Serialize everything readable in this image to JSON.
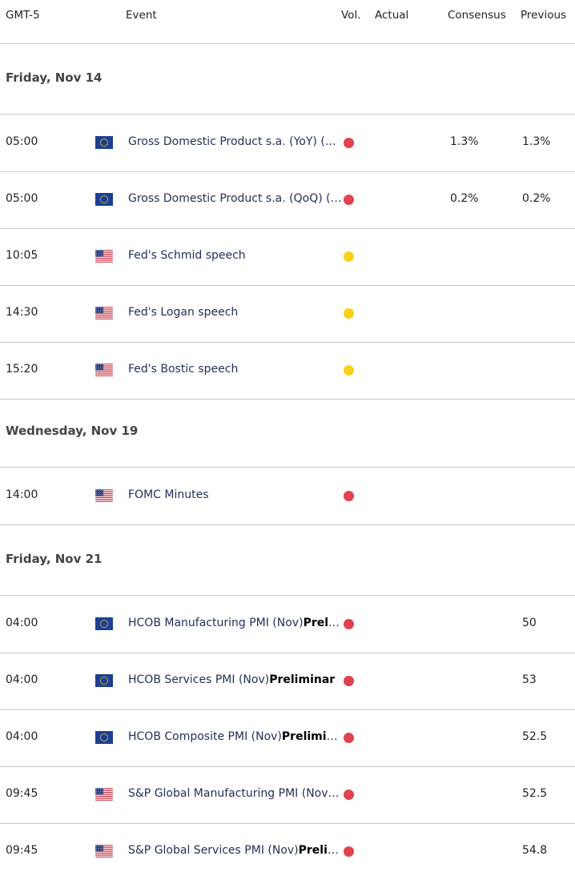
{
  "header": {
    "timezone": "GMT-5",
    "event": "Event",
    "vol": "Vol.",
    "actual": "Actual",
    "consensus": "Consensus",
    "previous": "Previous"
  },
  "colors": {
    "high_impact": "#e0424f",
    "medium_impact": "#f7d21a",
    "event_text": "#1f2f56"
  },
  "days": [
    {
      "label": "Friday, Nov 14",
      "events": [
        {
          "time": "05:00",
          "flag": "eu-flag",
          "name": "Gross Domestic Product s.a. (YoY) (Q…",
          "bold": "",
          "impact": "high",
          "consensus": "1.3%",
          "previous": "1.3%"
        },
        {
          "time": "05:00",
          "flag": "eu-flag",
          "name": "Gross Domestic Product s.a. (QoQ) (…",
          "bold": "",
          "impact": "high",
          "consensus": "0.2%",
          "previous": "0.2%"
        },
        {
          "time": "10:05",
          "flag": "us-flag",
          "name": "Fed's Schmid speech",
          "bold": "",
          "impact": "medium",
          "consensus": "",
          "previous": ""
        },
        {
          "time": "14:30",
          "flag": "us-flag",
          "name": "Fed's Logan speech",
          "bold": "",
          "impact": "medium",
          "consensus": "",
          "previous": ""
        },
        {
          "time": "15:20",
          "flag": "us-flag",
          "name": "Fed's Bostic speech",
          "bold": "",
          "impact": "medium",
          "consensus": "",
          "previous": ""
        }
      ]
    },
    {
      "label": "Wednesday, Nov 19",
      "events": [
        {
          "time": "14:00",
          "flag": "us-flag",
          "name": "FOMC Minutes",
          "bold": "",
          "impact": "high",
          "consensus": "",
          "previous": ""
        }
      ]
    },
    {
      "label": "Friday, Nov 21",
      "events": [
        {
          "time": "04:00",
          "flag": "eu-flag",
          "name": "HCOB Manufacturing PMI (Nov)",
          "bold": "Preli…",
          "impact": "high",
          "consensus": "",
          "previous": "50"
        },
        {
          "time": "04:00",
          "flag": "eu-flag",
          "name": "HCOB Services PMI (Nov)",
          "bold": "Preliminar",
          "impact": "high",
          "consensus": "",
          "previous": "53"
        },
        {
          "time": "04:00",
          "flag": "eu-flag",
          "name": "HCOB Composite PMI (Nov)",
          "bold": "Preliminar",
          "impact": "high",
          "consensus": "",
          "previous": "52.5"
        },
        {
          "time": "09:45",
          "flag": "us-flag",
          "name": "S&P Global Manufacturing PMI (Nov)…",
          "bold": "",
          "impact": "high",
          "consensus": "",
          "previous": "52.5"
        },
        {
          "time": "09:45",
          "flag": "us-flag",
          "name": "S&P Global Services PMI (Nov)",
          "bold": "Prelimi…",
          "impact": "high",
          "consensus": "",
          "previous": "54.8"
        }
      ]
    }
  ]
}
